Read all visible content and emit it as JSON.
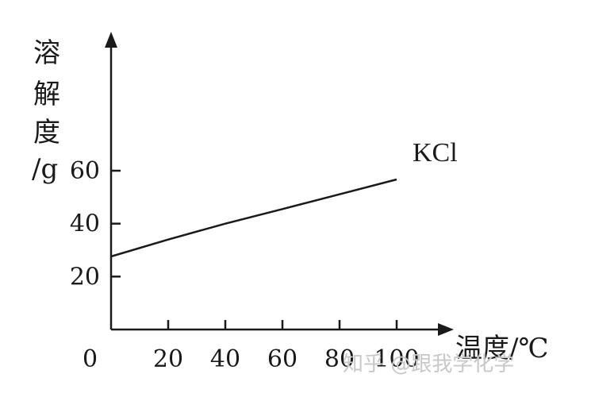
{
  "chart_data": {
    "type": "line",
    "title": "",
    "xlabel": "温度/℃",
    "ylabel_chars": [
      "溶",
      "解",
      "度",
      "/g"
    ],
    "origin_label": "0",
    "xlim": [
      0,
      100
    ],
    "ylim": [
      0,
      60
    ],
    "x_ticks": [
      20,
      40,
      60,
      80,
      100
    ],
    "y_ticks": [
      20,
      40,
      60
    ],
    "grid": false,
    "series": [
      {
        "name": "KCl",
        "x": [
          0,
          20,
          40,
          60,
          80,
          100
        ],
        "y": [
          27.6,
          34.0,
          40.0,
          45.5,
          51.1,
          56.7
        ]
      }
    ]
  },
  "watermark": "知乎 @跟我学化学"
}
